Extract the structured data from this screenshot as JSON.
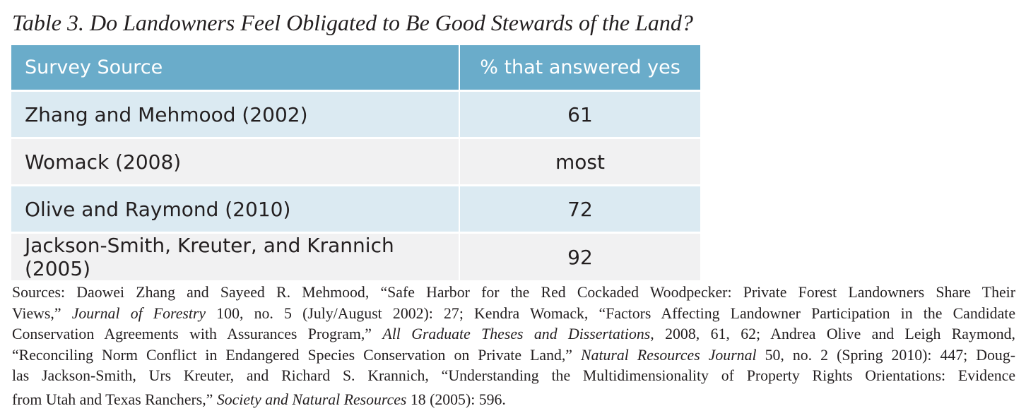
{
  "title": "Table 3. Do Landowners Feel Obligated to Be Good Stewards of the Land?",
  "table": {
    "headers": [
      "Survey Source",
      "% that answered yes"
    ],
    "rows": [
      [
        "Zhang and Mehmood (2002)",
        "61"
      ],
      [
        "Womack (2008)",
        "most"
      ],
      [
        "Olive and Raymond (2010)",
        "72"
      ],
      [
        "Jackson-Smith, Kreuter, and Krannich (2005)",
        "92"
      ]
    ]
  },
  "sources": {
    "l1": "Sources: Daowei Zhang and Sayeed R. Mehmood, “Safe Harbor for the Red Cockaded Woodpecker: Private Forest Landowners Share Their",
    "l2a": "Views,”",
    "l2b": "Journal of Forestry",
    "l2c": "100, no. 5 (July/August 2002): 27; Kendra Womack, “Factors Affecting Landowner Participation in the Candidate",
    "l3a": "Conservation Agreements with Assurances Program,”",
    "l3b": "All Graduate Theses and Dissertations",
    "l3c": ", 2008, 61, 62; Andrea Olive and Leigh Raymond,",
    "l4a": "“Reconciling Norm Conflict in Endangered Species Conservation on Private Land,”",
    "l4b": "Natural Resources Journal",
    "l4c": "50, no. 2 (Spring 2010): 447; Doug-",
    "l5": "las Jackson-Smith, Urs Kreuter, and Richard S. Krannich, “Understanding the Multidimensionality of Property Rights Orientations: Evidence",
    "l6a": "from Utah and Texas Ranchers,”",
    "l6b": "Society and Natural Resources",
    "l6c": "18 (2005): 596."
  },
  "colors": {
    "header_bg": "#6aacca",
    "row_blue": "#dbeaf2",
    "row_gray": "#f1f1f2",
    "text": "#231f20"
  }
}
